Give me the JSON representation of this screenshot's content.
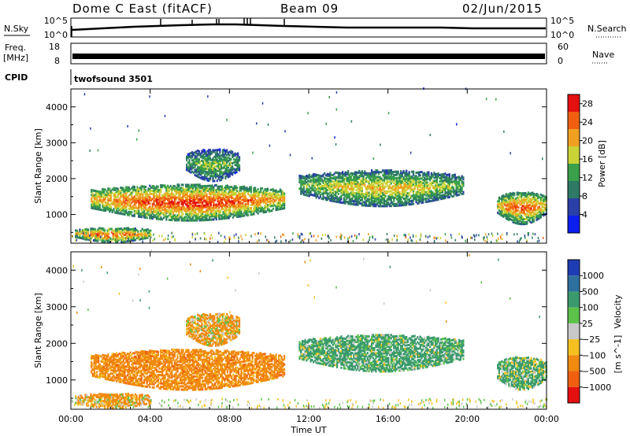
{
  "header": {
    "station": "Dome C East (fitACF)",
    "beam": "Beam 09",
    "date": "02/Jun/2015"
  },
  "top_panels": {
    "nsky_label": "N.Sky",
    "nsky_ticks": [
      "10^5",
      "10^0"
    ],
    "nsearch_label": "N.Search",
    "nsearch_ticks": [
      "10^5",
      "10^0"
    ],
    "freq_label": "Freq.",
    "freq_unit": "[MHz]",
    "freq_ticks": [
      "18",
      "8"
    ],
    "nave_label": "Nave",
    "nave_ticks": [
      "60",
      "0"
    ],
    "cpid_label": "CPID",
    "cpid_value": "twofsound 3501"
  },
  "colors": {
    "power_scale": [
      "#0a1ef0",
      "#2a3fa8",
      "#2e7a64",
      "#3aa04a",
      "#c9d335",
      "#f0a020",
      "#f06010",
      "#e51010"
    ],
    "velocity_scale": [
      "#1e3cb4",
      "#2e70a0",
      "#3a9a6e",
      "#5cc24a",
      "#c8c8c8",
      "#f5c020",
      "#f08a10",
      "#f06010",
      "#e51010"
    ]
  },
  "chart_data": [
    {
      "type": "heatmap",
      "name": "power",
      "ylabel": "Slant Range [km]",
      "ylim": [
        200,
        4500
      ],
      "yticks": [
        "1000",
        "2000",
        "3000",
        "4000"
      ],
      "xlim_hours": [
        0,
        24
      ],
      "xticks": [
        "00:00",
        "04:00",
        "08:00",
        "12:00",
        "16:00",
        "20:00",
        "00:00"
      ],
      "colorbar_label": "Power [dB]",
      "colorbar_ticks": [
        "4",
        "8",
        "12",
        "16",
        "20",
        "24",
        "28"
      ],
      "colorbar_range": [
        0,
        30
      ],
      "echo_regions": [
        {
          "t_start": 1.0,
          "t_end": 10.8,
          "r_low": 800,
          "r_high": 1800,
          "power_peak": 28
        },
        {
          "t_start": 5.8,
          "t_end": 8.5,
          "r_low": 1900,
          "r_high": 2800,
          "power_peak": 16
        },
        {
          "t_start": 0.2,
          "t_end": 4.0,
          "r_low": 200,
          "r_high": 600,
          "power_peak": 26
        },
        {
          "t_start": 11.5,
          "t_end": 19.8,
          "r_low": 1200,
          "r_high": 2200,
          "power_peak": 20
        },
        {
          "t_start": 21.5,
          "t_end": 24.0,
          "r_low": 700,
          "r_high": 1600,
          "power_peak": 26
        }
      ]
    },
    {
      "type": "heatmap",
      "name": "velocity",
      "ylabel": "Slant Range [km]",
      "xlabel": "Time UT",
      "ylim": [
        200,
        4500
      ],
      "yticks": [
        "1000",
        "2000",
        "3000",
        "4000"
      ],
      "xlim_hours": [
        0,
        24
      ],
      "xticks": [
        "00:00",
        "04:00",
        "08:00",
        "12:00",
        "16:00",
        "20:00",
        "00:00"
      ],
      "colorbar_label": "Velocity",
      "colorbar_unit": "[m s^-1]",
      "colorbar_ticks": [
        "1000",
        "500",
        "100",
        "25",
        "−25",
        "−100",
        "−500",
        "−1000"
      ],
      "echo_regions": [
        {
          "t_start": 1.0,
          "t_end": 10.8,
          "r_low": 700,
          "r_high": 1800,
          "velocity": -300
        },
        {
          "t_start": 5.8,
          "t_end": 8.5,
          "r_low": 1900,
          "r_high": 2800,
          "velocity": -150
        },
        {
          "t_start": 0.2,
          "t_end": 4.0,
          "r_low": 200,
          "r_high": 600,
          "velocity": -200
        },
        {
          "t_start": 11.5,
          "t_end": 19.8,
          "r_low": 1200,
          "r_high": 2200,
          "velocity": 200
        },
        {
          "t_start": 21.5,
          "t_end": 24.0,
          "r_low": 700,
          "r_high": 1600,
          "velocity": 150
        }
      ]
    }
  ]
}
